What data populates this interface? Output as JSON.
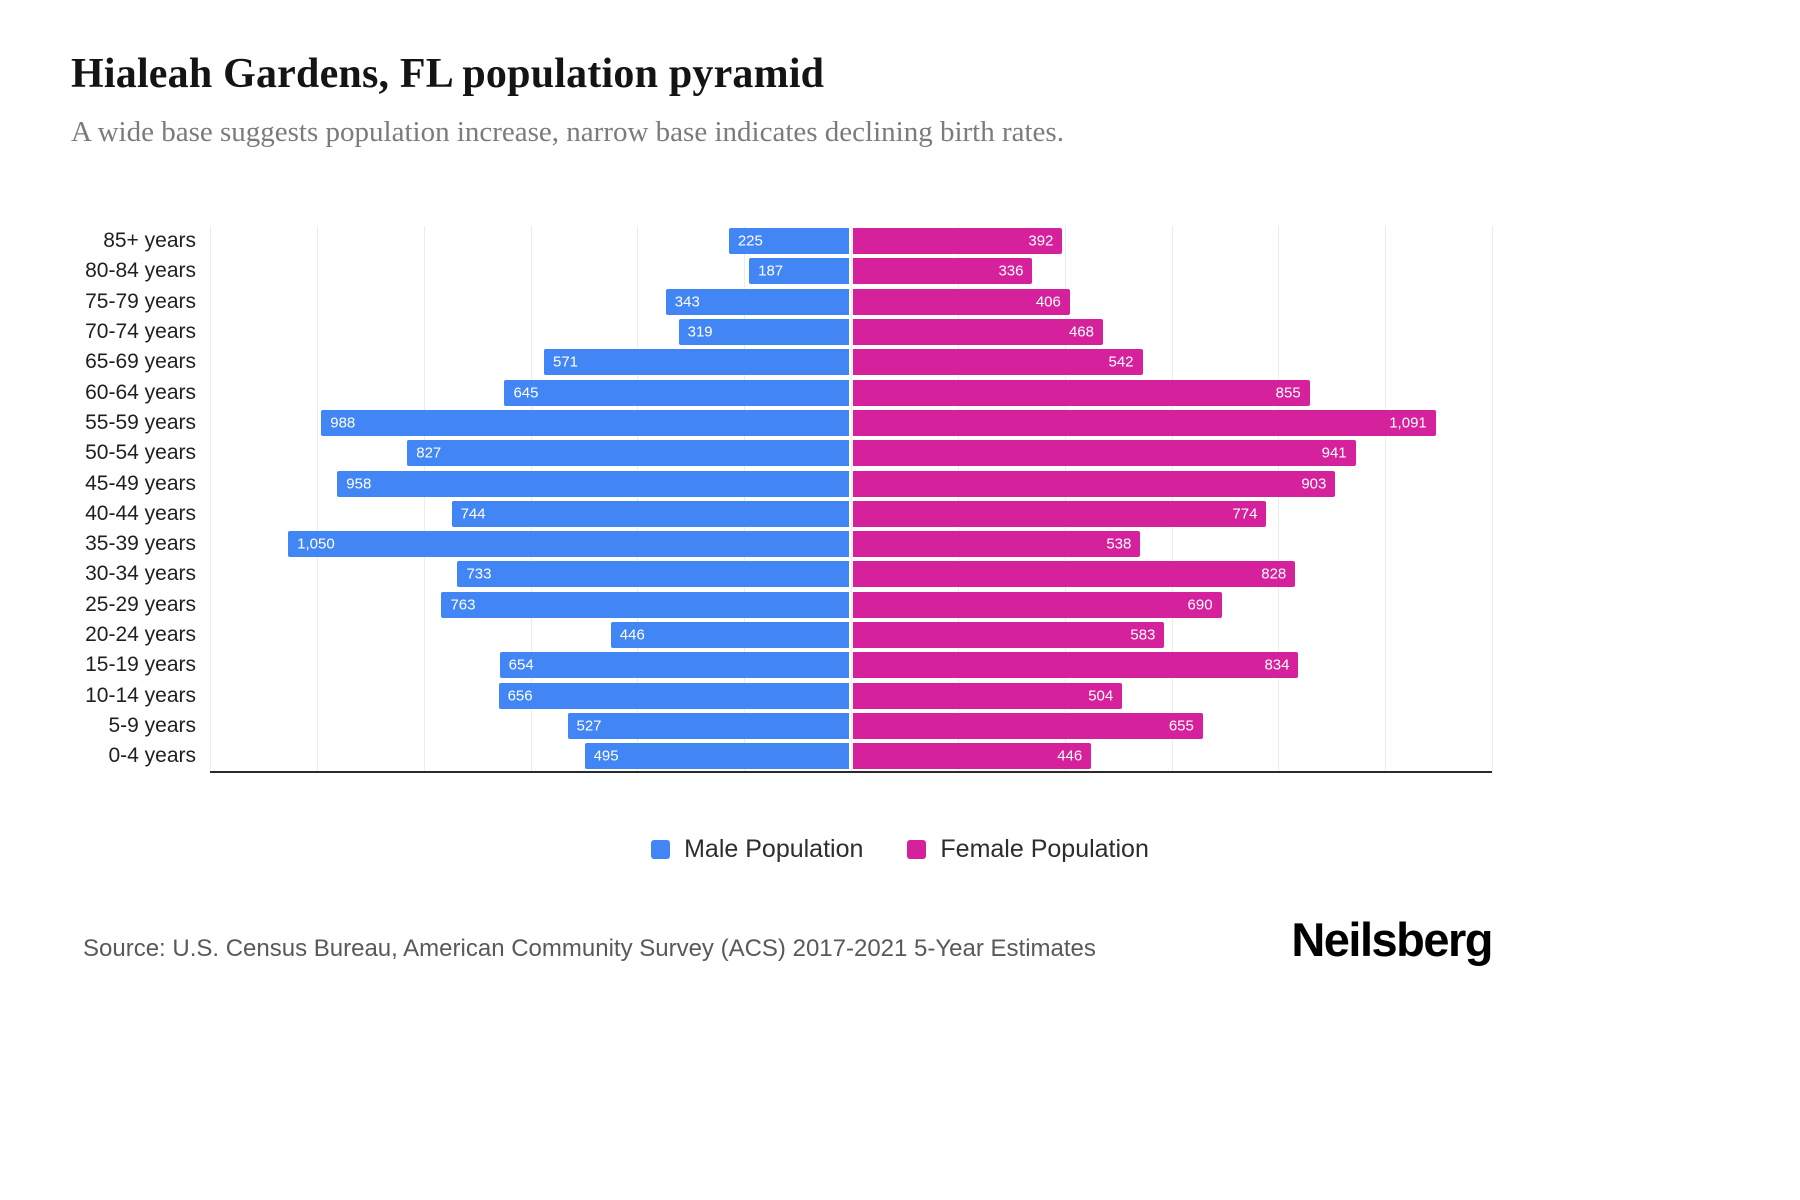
{
  "header": {
    "title": "Hialeah Gardens, FL population pyramid",
    "subtitle": "A wide base suggests population increase, narrow base indicates declining birth rates."
  },
  "chart_data": {
    "type": "bar",
    "variant": "population-pyramid",
    "title": "Hialeah Gardens, FL population pyramid",
    "categories": [
      "85+ years",
      "80-84 years",
      "75-79 years",
      "70-74 years",
      "65-69 years",
      "60-64 years",
      "55-59 years",
      "50-54 years",
      "45-49 years",
      "40-44 years",
      "35-39 years",
      "30-34 years",
      "25-29 years",
      "20-24 years",
      "15-19 years",
      "10-14 years",
      "5-9 years",
      "0-4 years"
    ],
    "series": [
      {
        "name": "Male Population",
        "color": "#4285f4",
        "values": [
          225,
          187,
          343,
          319,
          571,
          645,
          988,
          827,
          958,
          744,
          1050,
          733,
          763,
          446,
          654,
          656,
          527,
          495
        ]
      },
      {
        "name": "Female Population",
        "color": "#d6219c",
        "values": [
          392,
          336,
          406,
          468,
          542,
          855,
          1091,
          941,
          903,
          774,
          538,
          828,
          690,
          583,
          834,
          504,
          655,
          446
        ]
      }
    ],
    "xmax_per_side": 1200,
    "gridline_step": 200,
    "grid": true,
    "legend_position": "bottom",
    "value_labels": "inside-bar-outer-end"
  },
  "footer": {
    "source": "Source: U.S. Census Bureau, American Community Survey (ACS) 2017-2021 5-Year Estimates",
    "brand": "Neilsberg"
  }
}
